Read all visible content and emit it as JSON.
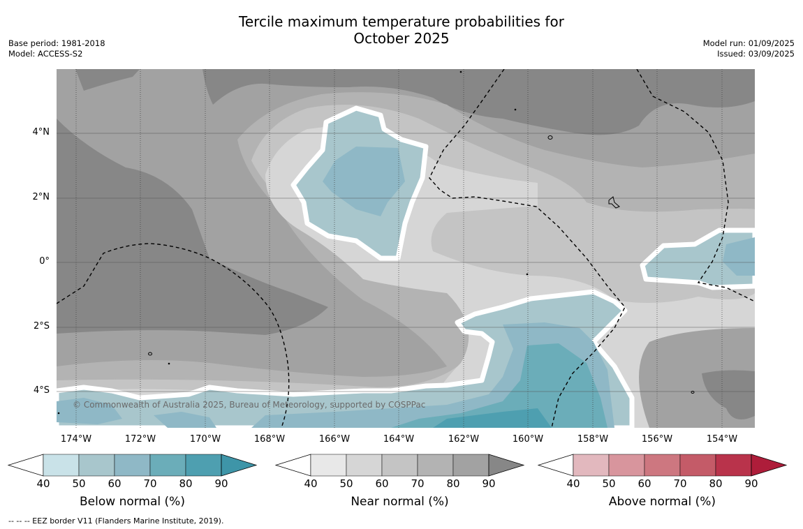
{
  "title_line1": "Tercile maximum temperature probabilities for",
  "title_line2": "October 2025",
  "base_period": "Base period: 1981-2018",
  "model": "Model: ACCESS-S2",
  "model_run": "Model run: 01/09/2025",
  "issued": "Issued: 03/09/2025",
  "copyright": "© Commonwealth of Australia 2025, Bureau of Meteorology, supported by COSPPac",
  "footnote": "--  --  -- EEZ border V11 (Flanders Marine Institute, 2019).",
  "lat_labels": [
    "4°N",
    "2°N",
    "0°",
    "2°S",
    "4°S"
  ],
  "lon_labels": [
    "174°W",
    "172°W",
    "170°W",
    "168°W",
    "166°W",
    "164°W",
    "162°W",
    "160°W",
    "158°W",
    "156°W",
    "154°W"
  ],
  "colorbars": [
    {
      "title": "Below normal (%)",
      "ticks": [
        "40",
        "50",
        "60",
        "70",
        "80",
        "90"
      ],
      "colors": [
        "#c9e2e8",
        "#a8c6cc",
        "#8fb8c6",
        "#6badb9",
        "#4e9fb0"
      ],
      "extend_color": "#3e95a8"
    },
    {
      "title": "Near normal (%)",
      "ticks": [
        "40",
        "50",
        "60",
        "70",
        "80",
        "90"
      ],
      "colors": [
        "#e8e8e8",
        "#d6d6d6",
        "#c4c4c4",
        "#b3b3b3",
        "#a2a2a2"
      ],
      "extend_color": "#878787"
    },
    {
      "title": "Above normal (%)",
      "ticks": [
        "40",
        "50",
        "60",
        "70",
        "80",
        "90"
      ],
      "colors": [
        "#e2b8be",
        "#d8959d",
        "#cd7780",
        "#c45b68",
        "#b9334b"
      ],
      "extend_color": "#ae1d3a"
    }
  ]
}
